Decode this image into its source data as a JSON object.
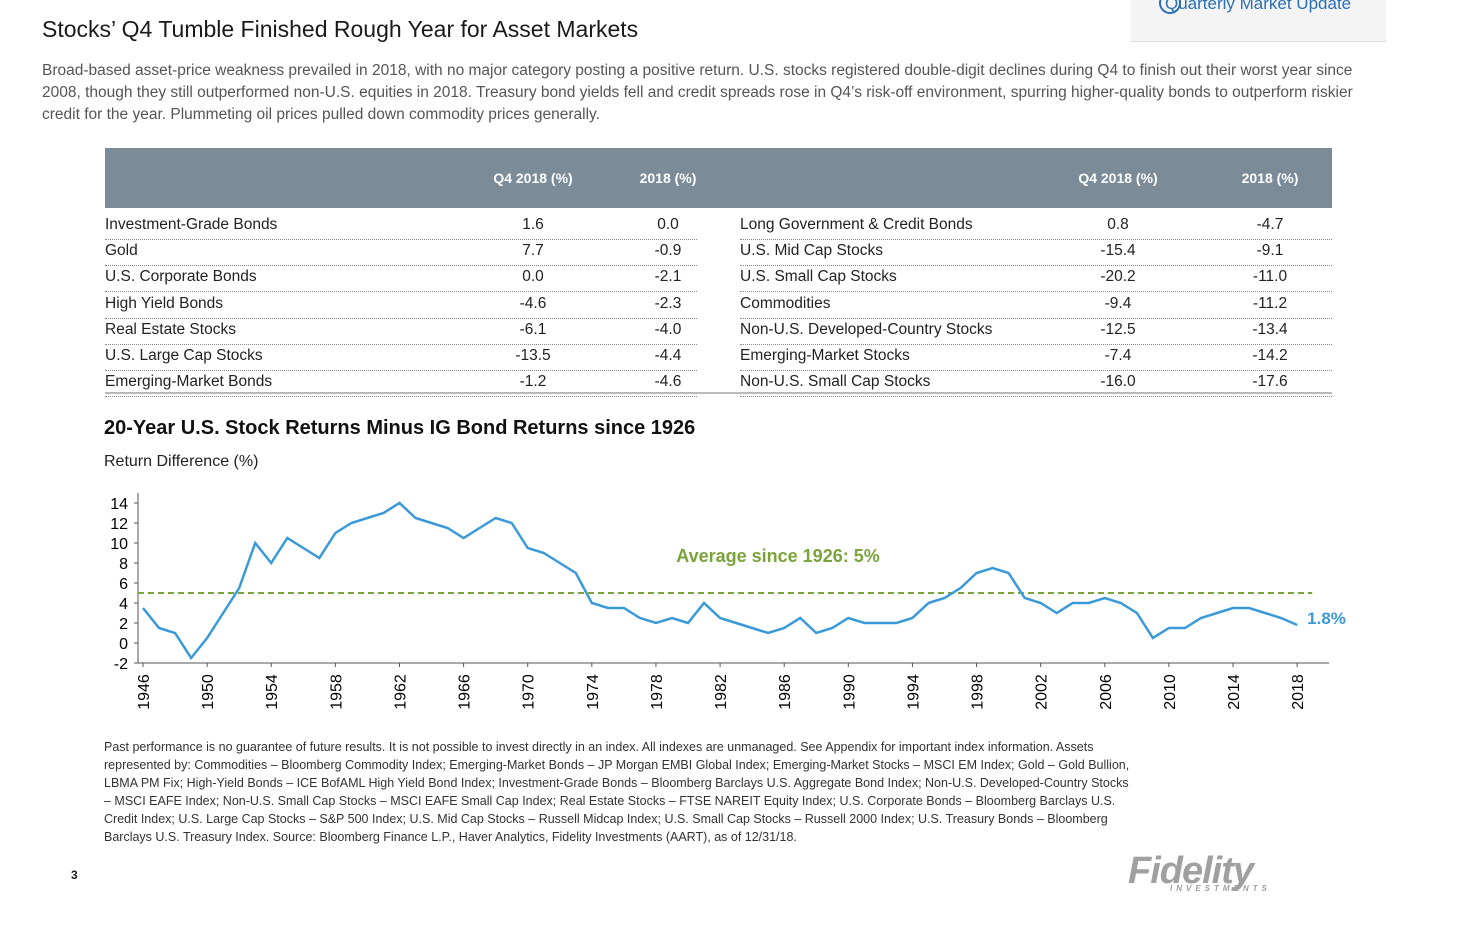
{
  "header": {
    "title": "Stocks’ Q4 Tumble Finished Rough Year for Asset Markets",
    "button": "Quarterly Market Update",
    "intro": "Broad-based asset-price weakness prevailed in 2018, with no major category posting a positive return. U.S. stocks registered double-digit declines during Q4 to finish out their worst year since 2008, though they still outperformed non-U.S. equities in 2018. Treasury bond yields fell and credit spreads rose in Q4’s risk-off environment, spurring higher-quality bonds to outperform riskier credit for the year. Plummeting oil prices pulled down commodity prices generally."
  },
  "table": {
    "left": {
      "columns": [
        "Q4 2018 (%)",
        "2018 (%)"
      ],
      "rows": [
        [
          "Investment-Grade Bonds",
          "1.6",
          "0.0"
        ],
        [
          "Gold",
          "7.7",
          "-0.9"
        ],
        [
          "U.S. Corporate Bonds",
          "0.0",
          "-2.1"
        ],
        [
          "High Yield Bonds",
          "-4.6",
          "-2.3"
        ],
        [
          "Real Estate Stocks",
          "-6.1",
          "-4.0"
        ],
        [
          "U.S. Large Cap Stocks",
          "-13.5",
          "-4.4"
        ],
        [
          "Emerging-Market Bonds",
          "-1.2",
          "-4.6"
        ]
      ]
    },
    "right": {
      "columns": [
        "Q4 2018 (%)",
        "2018 (%)"
      ],
      "rows": [
        [
          "Long Government & Credit Bonds",
          "0.8",
          "-4.7"
        ],
        [
          "U.S. Mid Cap Stocks",
          "-15.4",
          "-9.1"
        ],
        [
          "U.S. Small Cap Stocks",
          "-20.2",
          "-11.0"
        ],
        [
          "Commodities",
          "-9.4",
          "-11.2"
        ],
        [
          "Non-U.S. Developed-Country Stocks",
          "-12.5",
          "-13.4"
        ],
        [
          "Emerging-Market Stocks",
          "-7.4",
          "-14.2"
        ],
        [
          "Non-U.S. Small Cap Stocks",
          "-16.0",
          "-17.6"
        ]
      ]
    }
  },
  "chart_data": {
    "type": "line",
    "title": "20-Year U.S. Stock Returns Minus IG Bond Returns since 1926",
    "ylabel": "Return Difference (%)",
    "x": [
      1946,
      1947,
      1948,
      1949,
      1950,
      1951,
      1952,
      1953,
      1954,
      1955,
      1956,
      1957,
      1958,
      1959,
      1960,
      1961,
      1962,
      1963,
      1964,
      1965,
      1966,
      1967,
      1968,
      1969,
      1970,
      1971,
      1972,
      1973,
      1974,
      1975,
      1976,
      1977,
      1978,
      1979,
      1980,
      1981,
      1982,
      1983,
      1984,
      1985,
      1986,
      1987,
      1988,
      1989,
      1990,
      1991,
      1992,
      1993,
      1994,
      1995,
      1996,
      1997,
      1998,
      1999,
      2000,
      2001,
      2002,
      2003,
      2004,
      2005,
      2006,
      2007,
      2008,
      2009,
      2010,
      2011,
      2012,
      2013,
      2014,
      2015,
      2016,
      2017,
      2018
    ],
    "values": [
      3.5,
      1.5,
      1,
      -1.5,
      0.5,
      3,
      5.5,
      10,
      8,
      10.5,
      9.5,
      8.5,
      11,
      12,
      12.5,
      13,
      14,
      12.5,
      12,
      11.5,
      10.5,
      11.5,
      12.5,
      12,
      9.5,
      9,
      8,
      7,
      4,
      3.5,
      3.5,
      2.5,
      2,
      2.5,
      2,
      4,
      2.5,
      2,
      1.5,
      1,
      1.5,
      2.5,
      1,
      1.5,
      2.5,
      2,
      2,
      2,
      2.5,
      4,
      4.5,
      5.5,
      7,
      7.5,
      7,
      4.5,
      4,
      3,
      4,
      4,
      4.5,
      4,
      3,
      0.5,
      1.5,
      1.5,
      2.5,
      3,
      3.5,
      3.5,
      3,
      2.5,
      1.8
    ],
    "value_labels": [
      null,
      null,
      null,
      null,
      null,
      null,
      null,
      null,
      null,
      null,
      null,
      null,
      null,
      null,
      null,
      null,
      null,
      null,
      null,
      null,
      null,
      null,
      null,
      null,
      null,
      null,
      null,
      null,
      null,
      null,
      null,
      null,
      null,
      null,
      null,
      null,
      null,
      null,
      null,
      null,
      null,
      null,
      null,
      null,
      null,
      null,
      null,
      null,
      null,
      null,
      null,
      null,
      null,
      null,
      null,
      null,
      null,
      null,
      null,
      null,
      null,
      null,
      null,
      null,
      null,
      null,
      null,
      null,
      null,
      null,
      null,
      null,
      "1.8%"
    ],
    "color": "#3a9ad9",
    "average": 5,
    "average_label": "Average since 1926: 5%",
    "average_color": "#7aa33a",
    "xlim": [
      1946,
      2020
    ],
    "ylim": [
      -2,
      15
    ],
    "xticks": [
      1946,
      1950,
      1954,
      1958,
      1962,
      1966,
      1970,
      1974,
      1978,
      1982,
      1986,
      1990,
      1994,
      1998,
      2002,
      2006,
      2010,
      2014,
      2018
    ],
    "yticks": [
      -2,
      0,
      2,
      4,
      6,
      8,
      10,
      12,
      14
    ]
  },
  "footnote": "Past performance is no guarantee of future results. It is not possible to invest directly in an index. All indexes are unmanaged. See Appendix for important index information. Assets represented by: Commodities – Bloomberg Commodity Index; Emerging-Market Bonds – JP Morgan EMBI Global Index; Emerging-Market Stocks – MSCI EM Index; Gold – Gold Bullion, LBMA PM Fix; High-Yield Bonds – ICE BofAML High Yield Bond Index; Investment-Grade Bonds – Bloomberg Barclays U.S. Aggregate Bond Index; Non-U.S. Developed-Country Stocks – MSCI EAFE Index; Non-U.S. Small Cap Stocks – MSCI EAFE Small Cap Index; Real Estate Stocks – FTSE NAREIT Equity Index; U.S. Corporate Bonds – Bloomberg Barclays U.S. Credit Index; U.S. Large Cap Stocks – S&P 500 Index; U.S. Mid Cap Stocks – Russell Midcap Index; U.S. Small Cap Stocks – Russell 2000 Index; U.S. Treasury Bonds – Bloomberg Barclays U.S. Treasury Index. Source: Bloomberg Finance L.P., Haver Analytics, Fidelity Investments (AART), as of 12/31/18.",
  "page_number": "3",
  "logo": {
    "name": "Fidelity",
    "sub": "INVESTMENTS"
  }
}
